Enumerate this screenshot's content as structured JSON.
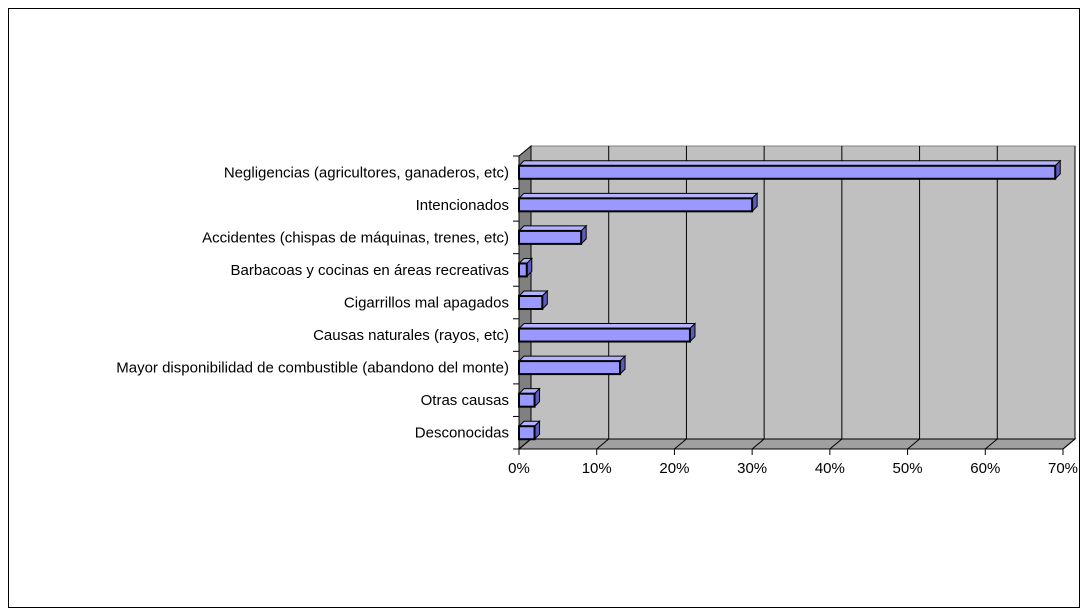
{
  "chart_data": {
    "type": "bar",
    "orientation": "horizontal",
    "style": "3d",
    "categories": [
      "Negligencias (agricultores, ganaderos, etc)",
      "Intencionados",
      "Accidentes (chispas de máquinas, trenes, etc)",
      "Barbacoas y cocinas en áreas recreativas",
      "Cigarrillos mal apagados",
      "Causas naturales (rayos, etc)",
      "Mayor disponibilidad de combustible (abandono del monte)",
      "Otras causas",
      "Desconocidas"
    ],
    "values": [
      69,
      30,
      8,
      1,
      3,
      22,
      13,
      2,
      2
    ],
    "xlim": [
      0,
      70
    ],
    "xticks": [
      "0%",
      "10%",
      "20%",
      "30%",
      "40%",
      "50%",
      "60%",
      "70%"
    ],
    "title": "",
    "xlabel": "",
    "ylabel": "",
    "grid": true,
    "legend": "none",
    "colors": {
      "bar_face": "#9999ff",
      "bar_top": "#b3b3ff",
      "bar_side": "#5c5cc0",
      "plot_back": "#c0c0c0",
      "plot_wall": "#808080",
      "plot_floor": "#a0a0a0",
      "grid": "#000000"
    }
  }
}
